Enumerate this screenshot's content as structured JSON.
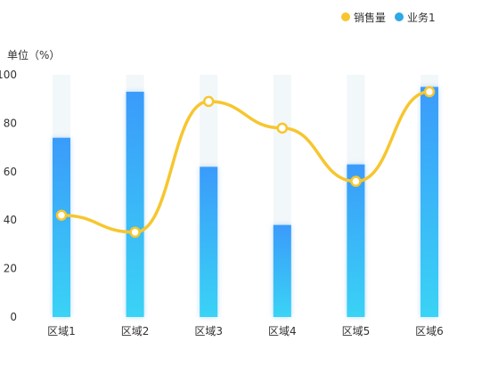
{
  "chart_data": {
    "type": "bar",
    "ylabel": "单位（%）",
    "ylim": [
      0,
      100
    ],
    "yticks": [
      0,
      20,
      40,
      60,
      80,
      100
    ],
    "grid": false,
    "legend_position": "top-right",
    "categories": [
      "区域1",
      "区域2",
      "区域3",
      "区域4",
      "区域5",
      "区域6"
    ],
    "series": [
      {
        "name": "销售量",
        "type": "line",
        "smooth": true,
        "color": "#F7C62F",
        "values": [
          42,
          35,
          89,
          78,
          56,
          93
        ]
      },
      {
        "name": "业务1",
        "type": "bar",
        "color": "#3A9BFA",
        "color_bottom": "#3AD3F5",
        "background": 100,
        "values": [
          74,
          93,
          62,
          38,
          63,
          95
        ]
      }
    ]
  },
  "colors": {
    "bar_top": "#3A9BFA",
    "bar_bottom": "#3AD3F5",
    "bar_background": "#F2F7F9",
    "line": "#F7C62F",
    "legend_bar_dot": "#2FA8E6"
  }
}
